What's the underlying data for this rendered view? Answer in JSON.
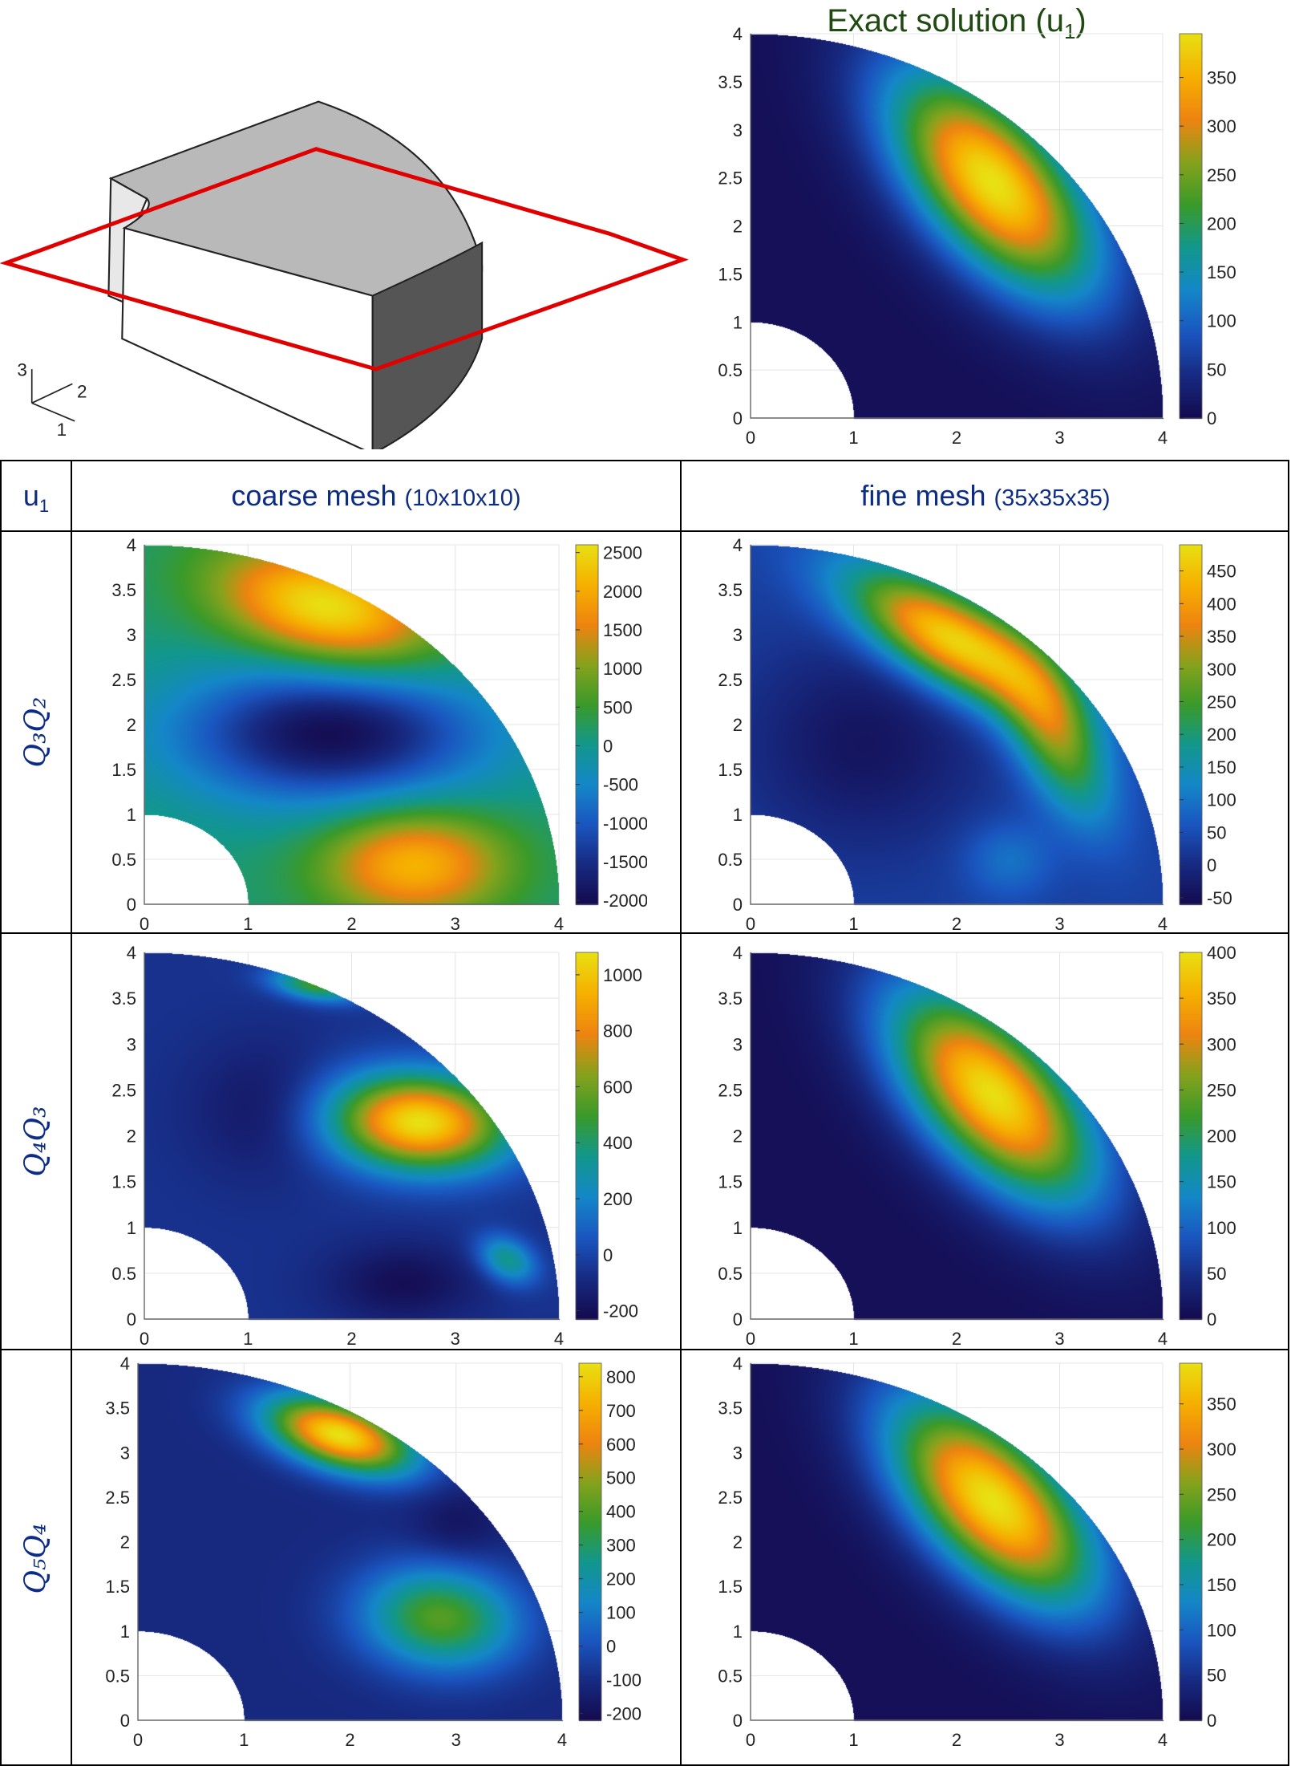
{
  "title": "Exact solution (u",
  "title_sub": "1",
  "title_close": ")",
  "title_color": "#1f4a12",
  "diagram": {
    "axis_labels": [
      "3",
      "2",
      "1"
    ],
    "plane_color": "#e00000"
  },
  "table": {
    "corner_label": "u",
    "corner_sub": "1",
    "columns": [
      {
        "label": "coarse mesh ",
        "detail": "(10x10x10)"
      },
      {
        "label": "fine mesh ",
        "detail": "(35x35x35)"
      }
    ],
    "rows": [
      {
        "label": "Q₃Q₂"
      },
      {
        "label": "Q₄Q₃"
      },
      {
        "label": "Q₅Q₄"
      }
    ],
    "text_color": "#0d2c84"
  },
  "colormap": [
    "#140a4e",
    "#172a82",
    "#1a56c0",
    "#1487c8",
    "#12978c",
    "#3a9a2a",
    "#86a21c",
    "#ee8410",
    "#f6b000",
    "#e8e012"
  ],
  "chart_data": [
    {
      "id": "exact",
      "type": "heatmap",
      "xlim": [
        0,
        4
      ],
      "ylim": [
        0,
        4
      ],
      "xticks": [
        0,
        1,
        2,
        3,
        4
      ],
      "yticks": [
        0,
        0.5,
        1,
        1.5,
        2,
        2.5,
        3,
        3.5,
        4
      ],
      "clim": [
        0,
        395
      ],
      "cticks": [
        0,
        50,
        100,
        150,
        200,
        250,
        300,
        350
      ],
      "grid": true,
      "domain": "quarter annulus r 1-4",
      "field": {
        "base": 8,
        "blobs": [
          {
            "x": 2.35,
            "y": 2.45,
            "amp": 388,
            "sa": 0.95,
            "sb": 0.47,
            "angle": -52
          }
        ]
      }
    },
    {
      "id": "q3q2-coarse",
      "type": "heatmap",
      "xlim": [
        0,
        4
      ],
      "ylim": [
        0,
        4
      ],
      "xticks": [
        0,
        1,
        2,
        3,
        4
      ],
      "yticks": [
        0,
        0.5,
        1,
        1.5,
        2,
        2.5,
        3,
        3.5,
        4
      ],
      "clim": [
        -2050,
        2600
      ],
      "cticks": [
        -2000,
        -1500,
        -1000,
        -500,
        0,
        500,
        1000,
        1500,
        2000,
        2500
      ],
      "grid": true,
      "field": {
        "base": 150,
        "blobs": [
          {
            "x": 1.75,
            "y": 3.3,
            "amp": 2500,
            "sa": 0.75,
            "sb": 0.42,
            "angle": -18
          },
          {
            "x": 2.6,
            "y": 0.45,
            "amp": 2000,
            "sa": 0.62,
            "sb": 0.42,
            "angle": 0
          },
          {
            "x": 1.8,
            "y": 1.9,
            "amp": -2150,
            "sa": 1.05,
            "sb": 0.55,
            "angle": 0
          }
        ]
      }
    },
    {
      "id": "q3q2-fine",
      "type": "heatmap",
      "xlim": [
        0,
        4
      ],
      "ylim": [
        0,
        4
      ],
      "xticks": [
        0,
        1,
        2,
        3,
        4
      ],
      "yticks": [
        0,
        0.5,
        1,
        1.5,
        2,
        2.5,
        3,
        3.5,
        4
      ],
      "clim": [
        -60,
        490
      ],
      "cticks": [
        -50,
        0,
        50,
        100,
        150,
        200,
        250,
        300,
        350,
        400,
        450
      ],
      "grid": true,
      "field": {
        "base": 30,
        "blobs": [
          {
            "x": 1.95,
            "y": 2.95,
            "amp": 450,
            "sa": 0.8,
            "sb": 0.33,
            "angle": -35
          },
          {
            "x": 2.95,
            "y": 1.9,
            "amp": 260,
            "sa": 0.7,
            "sb": 0.28,
            "angle": -68
          },
          {
            "x": 1.1,
            "y": 1.8,
            "amp": -70,
            "sa": 0.8,
            "sb": 0.8,
            "angle": 0
          },
          {
            "x": 2.5,
            "y": 0.5,
            "amp": 70,
            "sa": 0.3,
            "sb": 0.3,
            "angle": 0
          }
        ]
      }
    },
    {
      "id": "q4q3-coarse",
      "type": "heatmap",
      "xlim": [
        0,
        4
      ],
      "ylim": [
        0,
        4
      ],
      "xticks": [
        0,
        1,
        2,
        3,
        4
      ],
      "yticks": [
        0,
        0.5,
        1,
        1.5,
        2,
        2.5,
        3,
        3.5,
        4
      ],
      "clim": [
        -230,
        1080
      ],
      "cticks": [
        -200,
        0,
        200,
        400,
        600,
        800,
        1000
      ],
      "grid": true,
      "field": {
        "base": -60,
        "blobs": [
          {
            "x": 2.65,
            "y": 2.15,
            "amp": 1140,
            "sa": 0.6,
            "sb": 0.36,
            "angle": -5
          },
          {
            "x": 1.65,
            "y": 3.65,
            "amp": 560,
            "sa": 0.3,
            "sb": 0.12,
            "angle": -10
          },
          {
            "x": 3.5,
            "y": 0.65,
            "amp": 420,
            "sa": 0.22,
            "sb": 0.16,
            "angle": -40
          },
          {
            "x": 2.5,
            "y": 0.4,
            "amp": -150,
            "sa": 0.5,
            "sb": 0.3,
            "angle": 0
          },
          {
            "x": 1.2,
            "y": 2.3,
            "amp": -120,
            "sa": 0.5,
            "sb": 0.5,
            "angle": 0
          }
        ]
      }
    },
    {
      "id": "q4q3-fine",
      "type": "heatmap",
      "xlim": [
        0,
        4
      ],
      "ylim": [
        0,
        4
      ],
      "xticks": [
        0,
        1,
        2,
        3,
        4
      ],
      "yticks": [
        0,
        0.5,
        1,
        1.5,
        2,
        2.5,
        3,
        3.5,
        4
      ],
      "clim": [
        0,
        400
      ],
      "cticks": [
        0,
        50,
        100,
        150,
        200,
        250,
        300,
        350,
        400
      ],
      "grid": true,
      "field": {
        "base": 8,
        "blobs": [
          {
            "x": 2.35,
            "y": 2.45,
            "amp": 390,
            "sa": 0.95,
            "sb": 0.47,
            "angle": -52
          }
        ]
      }
    },
    {
      "id": "q5q4-coarse",
      "type": "heatmap",
      "xlim": [
        0,
        4
      ],
      "ylim": [
        0,
        4
      ],
      "xticks": [
        0,
        1,
        2,
        3,
        4
      ],
      "yticks": [
        0,
        0.5,
        1,
        1.5,
        2,
        2.5,
        3,
        3.5,
        4
      ],
      "clim": [
        -220,
        840
      ],
      "cticks": [
        -200,
        -100,
        0,
        100,
        200,
        300,
        400,
        500,
        600,
        700,
        800
      ],
      "grid": true,
      "field": {
        "base": -110,
        "blobs": [
          {
            "x": 1.9,
            "y": 3.2,
            "amp": 950,
            "sa": 0.5,
            "sb": 0.25,
            "angle": -22
          },
          {
            "x": 2.85,
            "y": 1.15,
            "amp": 520,
            "sa": 0.52,
            "sb": 0.4,
            "angle": -10
          },
          {
            "x": 3.0,
            "y": 2.2,
            "amp": -80,
            "sa": 0.3,
            "sb": 0.3,
            "angle": 0
          }
        ]
      }
    },
    {
      "id": "q5q4-fine",
      "type": "heatmap",
      "xlim": [
        0,
        4
      ],
      "ylim": [
        0,
        4
      ],
      "xticks": [
        0,
        1,
        2,
        3,
        4
      ],
      "yticks": [
        0,
        0.5,
        1,
        1.5,
        2,
        2.5,
        3,
        3.5,
        4
      ],
      "clim": [
        0,
        395
      ],
      "cticks": [
        0,
        50,
        100,
        150,
        200,
        250,
        300,
        350
      ],
      "grid": true,
      "field": {
        "base": 8,
        "blobs": [
          {
            "x": 2.35,
            "y": 2.45,
            "amp": 388,
            "sa": 0.95,
            "sb": 0.47,
            "angle": -52
          }
        ]
      }
    }
  ]
}
